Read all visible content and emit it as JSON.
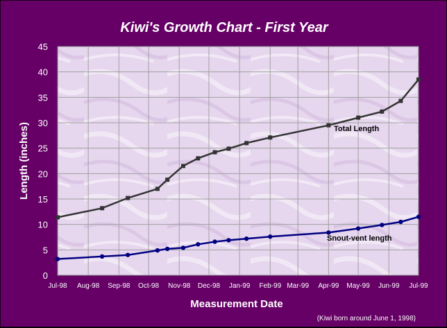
{
  "chart_data": {
    "type": "line",
    "title": "Kiwi's Growth Chart - First Year",
    "xlabel": "Measurement Date",
    "ylabel": "Length (inches)",
    "note": "(Kiwi born around June 1, 1998)",
    "x_ticks": [
      "Jul-98",
      "Aug-98",
      "Sep-98",
      "Oct-98",
      "Nov-98",
      "Dec-98",
      "Jan-99",
      "Feb-99",
      "Mar-99",
      "Apr-99",
      "May-99",
      "Jun-99",
      "Jul-99"
    ],
    "y_ticks": [
      0,
      5,
      10,
      15,
      20,
      25,
      30,
      35,
      40,
      45
    ],
    "xlim": [
      "1998-07-01",
      "1999-07-01"
    ],
    "ylim": [
      0,
      45
    ],
    "grid": true,
    "plot_background": "#e8d8f0",
    "series": [
      {
        "name": "Total Length",
        "color": "#333333",
        "x": [
          "1998-07-01",
          "1998-08-15",
          "1998-09-10",
          "1998-10-10",
          "1998-10-20",
          "1998-11-05",
          "1998-11-20",
          "1998-12-07",
          "1998-12-21",
          "1999-01-08",
          "1999-02-01",
          "1999-04-01",
          "1999-05-01",
          "1999-05-25",
          "1999-06-13",
          "1999-07-01"
        ],
        "values": [
          11.4,
          13.2,
          15.2,
          17.0,
          18.8,
          21.5,
          23.0,
          24.2,
          24.9,
          26.0,
          27.1,
          29.5,
          31.0,
          32.2,
          34.3,
          38.5
        ]
      },
      {
        "name": "Snout-vent length",
        "color": "#000080",
        "x": [
          "1998-07-01",
          "1998-08-15",
          "1998-09-10",
          "1998-10-10",
          "1998-10-20",
          "1998-11-05",
          "1998-11-20",
          "1998-12-07",
          "1998-12-21",
          "1999-01-08",
          "1999-02-01",
          "1999-04-01",
          "1999-05-01",
          "1999-05-25",
          "1999-06-13",
          "1999-07-01"
        ],
        "values": [
          3.2,
          3.7,
          4.0,
          4.9,
          5.2,
          5.4,
          6.1,
          6.6,
          6.9,
          7.2,
          7.6,
          8.4,
          9.2,
          9.9,
          10.5,
          11.5
        ]
      }
    ]
  }
}
